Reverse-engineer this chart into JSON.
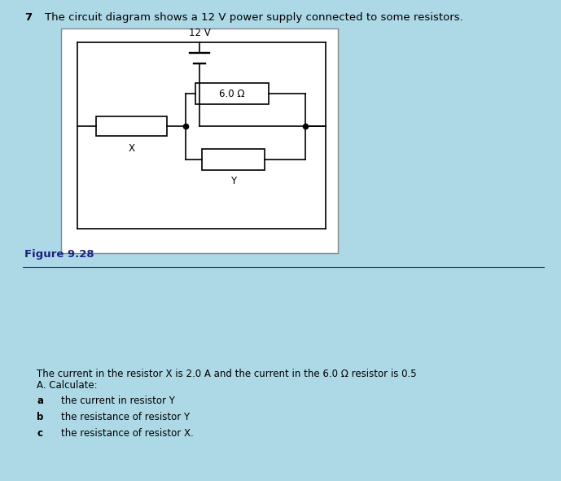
{
  "title_number": "7",
  "title_text": "The circuit diagram shows a 12 V power supply connected to some resistors.",
  "figure_label": "Figure 9.28",
  "voltage_label": "12 V",
  "resistor_6_label": "6.0 Ω",
  "resistor_x_label": "X",
  "resistor_y_label": "Y",
  "question_text_line1": "The current in the resistor X is 2.0 A and the current in the 6.0 Ω resistor is 0.5",
  "question_text_line2": "A. Calculate:",
  "parts": [
    {
      "letter": "a",
      "text": "the current in resistor Y"
    },
    {
      "letter": "b",
      "text": "the resistance of resistor Y"
    },
    {
      "letter": "c",
      "text": "the resistance of resistor X."
    }
  ],
  "bg_light_blue": "#add8e6",
  "bg_white": "#ffffff",
  "bg_black": "#000000",
  "line_color": "#000000",
  "figure_label_color": "#1a237e",
  "separator_line_color": "#1a237e",
  "font_size_title": 9.5,
  "font_size_circuit": 8.5,
  "font_size_body": 8.5,
  "lw_circuit": 1.2
}
